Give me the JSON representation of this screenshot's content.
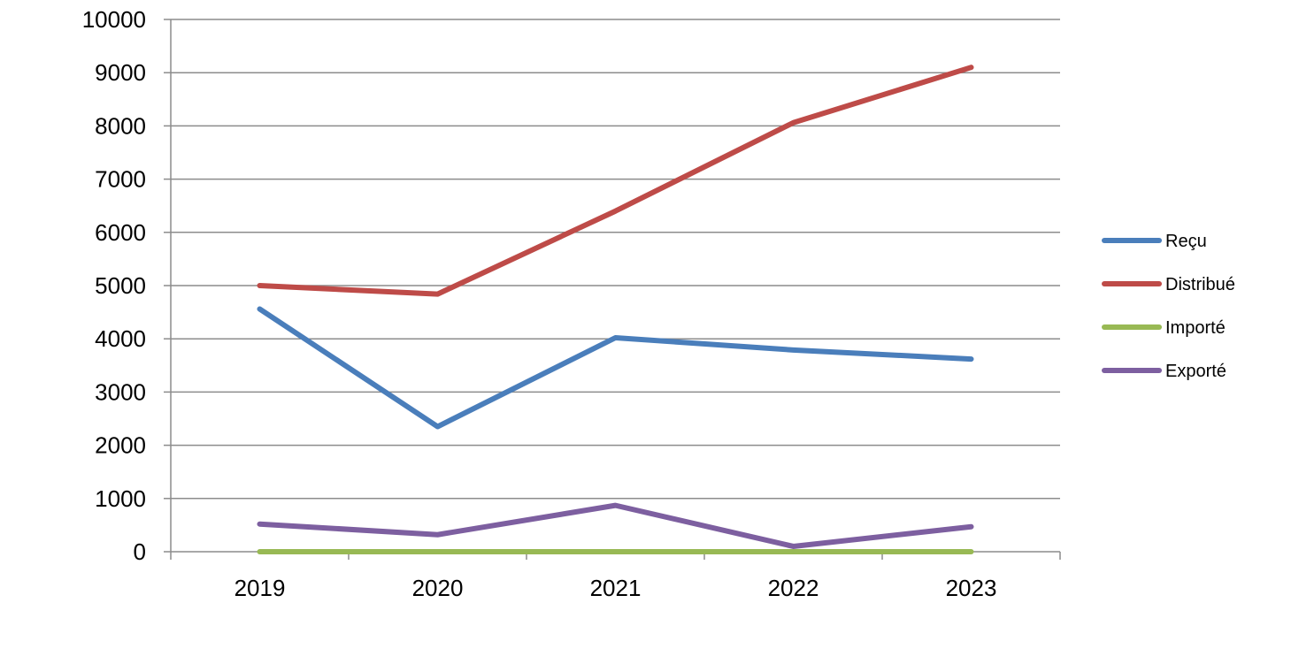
{
  "chart_data": {
    "type": "line",
    "title": "",
    "xlabel": "",
    "ylabel": "",
    "categories": [
      "2019",
      "2020",
      "2021",
      "2022",
      "2023"
    ],
    "ylim": [
      0,
      10000
    ],
    "yticks": [
      0,
      1000,
      2000,
      3000,
      4000,
      5000,
      6000,
      7000,
      8000,
      9000,
      10000
    ],
    "grid": true,
    "legend_position": "right",
    "series": [
      {
        "name": "Reçu",
        "color": "#4a7ebb",
        "values": [
          4560,
          2350,
          4020,
          3790,
          3620
        ]
      },
      {
        "name": "Distribué",
        "color": "#be4b48",
        "values": [
          5000,
          4840,
          6400,
          8060,
          9100
        ]
      },
      {
        "name": "Importé",
        "color": "#98b954",
        "values": [
          0,
          0,
          0,
          0,
          0
        ]
      },
      {
        "name": "Exporté",
        "color": "#7d5fa0",
        "values": [
          520,
          320,
          870,
          100,
          470
        ]
      }
    ]
  }
}
